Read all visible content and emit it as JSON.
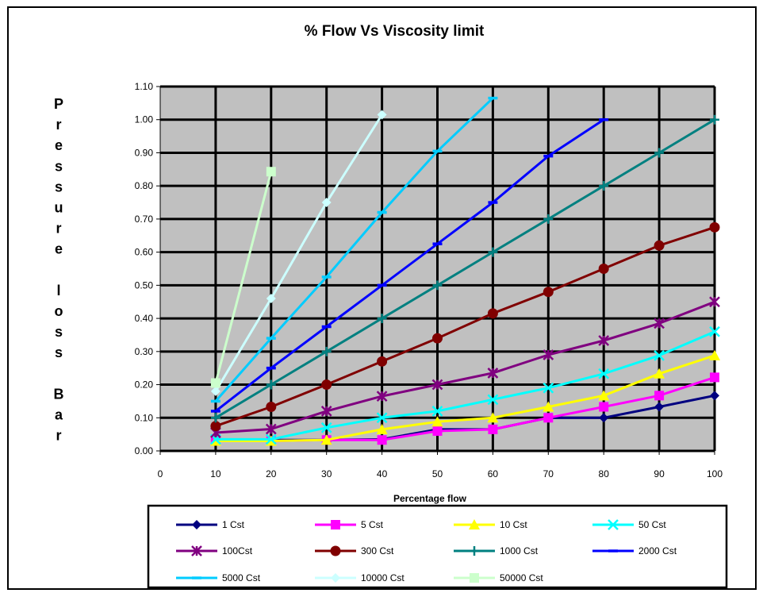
{
  "chart_data": {
    "type": "line",
    "title": "% Flow Vs Viscosity limit",
    "xlabel": "Percentage flow",
    "ylabel": "Pressure loss Bar",
    "ylabel_chars": [
      "P",
      "r",
      "e",
      "s",
      "s",
      "u",
      "r",
      "e",
      "",
      "l",
      "o",
      "s",
      "s",
      "",
      "B",
      "a",
      "r"
    ],
    "xlim": [
      0,
      100
    ],
    "ylim": [
      0,
      1.1
    ],
    "x_ticks": [
      0,
      10,
      20,
      30,
      40,
      50,
      60,
      70,
      80,
      90,
      100
    ],
    "y_ticks": [
      0.0,
      0.1,
      0.2,
      0.3,
      0.4,
      0.5,
      0.6,
      0.7,
      0.8,
      0.9,
      1.0,
      1.1
    ],
    "x_tick_labels": [
      "0",
      "10",
      "20",
      "30",
      "40",
      "50",
      "60",
      "70",
      "80",
      "90",
      "100"
    ],
    "y_tick_labels": [
      "0.00",
      "0.10",
      "0.20",
      "0.30",
      "0.40",
      "0.50",
      "0.60",
      "0.70",
      "0.80",
      "0.90",
      "1.00",
      "1.10"
    ],
    "grid": true,
    "plot_background": "#c0c0c0",
    "legend_position": "bottom",
    "series": [
      {
        "name": "1 Cst",
        "color": "#000080",
        "marker": "diamond",
        "x": [
          10,
          20,
          30,
          40,
          50,
          60,
          70,
          80,
          90,
          100
        ],
        "y": [
          0.035,
          0.033,
          0.033,
          0.035,
          0.065,
          0.065,
          0.1,
          0.1,
          0.133,
          0.167
        ]
      },
      {
        "name": "5 Cst",
        "color": "#ff00ff",
        "marker": "square",
        "x": [
          10,
          20,
          30,
          40,
          50,
          60,
          70,
          80,
          90,
          100
        ],
        "y": [
          0.03,
          0.03,
          0.033,
          0.033,
          0.06,
          0.065,
          0.1,
          0.133,
          0.167,
          0.222
        ]
      },
      {
        "name": "10 Cst",
        "color": "#ffff00",
        "marker": "triangle",
        "x": [
          10,
          20,
          30,
          40,
          50,
          60,
          70,
          80,
          90,
          100
        ],
        "y": [
          0.03,
          0.03,
          0.033,
          0.065,
          0.088,
          0.1,
          0.133,
          0.167,
          0.233,
          0.288
        ]
      },
      {
        "name": "50 Cst",
        "color": "#00ffff",
        "marker": "x",
        "x": [
          10,
          20,
          30,
          40,
          50,
          60,
          70,
          80,
          90,
          100
        ],
        "y": [
          0.035,
          0.035,
          0.07,
          0.1,
          0.12,
          0.155,
          0.19,
          0.233,
          0.288,
          0.36
        ]
      },
      {
        "name": "100Cst",
        "color": "#800080",
        "marker": "star",
        "x": [
          10,
          20,
          30,
          40,
          50,
          60,
          70,
          80,
          90,
          100
        ],
        "y": [
          0.055,
          0.066,
          0.12,
          0.165,
          0.2,
          0.235,
          0.29,
          0.333,
          0.385,
          0.45
        ]
      },
      {
        "name": "300 Cst",
        "color": "#800000",
        "marker": "circle",
        "x": [
          10,
          20,
          30,
          40,
          50,
          60,
          70,
          80,
          90,
          100
        ],
        "y": [
          0.075,
          0.133,
          0.2,
          0.27,
          0.34,
          0.415,
          0.48,
          0.55,
          0.62,
          0.675
        ]
      },
      {
        "name": "1000 Cst",
        "color": "#008080",
        "marker": "plus",
        "x": [
          10,
          20,
          30,
          40,
          50,
          60,
          70,
          80,
          90,
          100
        ],
        "y": [
          0.1,
          0.2,
          0.3,
          0.4,
          0.5,
          0.6,
          0.7,
          0.8,
          0.9,
          1.0
        ]
      },
      {
        "name": "2000 Cst",
        "color": "#0000ff",
        "marker": "dash",
        "x": [
          10,
          20,
          30,
          40,
          50,
          60,
          70,
          80
        ],
        "y": [
          0.12,
          0.25,
          0.375,
          0.5,
          0.625,
          0.75,
          0.89,
          1.0
        ]
      },
      {
        "name": "5000 Cst",
        "color": "#00ccff",
        "marker": "dash",
        "x": [
          10,
          20,
          30,
          40,
          50,
          60
        ],
        "y": [
          0.15,
          0.34,
          0.525,
          0.72,
          0.905,
          1.065
        ]
      },
      {
        "name": "10000 Cst",
        "color": "#ccffff",
        "marker": "diamond",
        "x": [
          10,
          20,
          30,
          40
        ],
        "y": [
          0.18,
          0.46,
          0.75,
          1.015
        ]
      },
      {
        "name": "50000 Cst",
        "color": "#ccffcc",
        "marker": "square",
        "x": [
          10,
          20
        ],
        "y": [
          0.205,
          0.843
        ]
      }
    ]
  }
}
